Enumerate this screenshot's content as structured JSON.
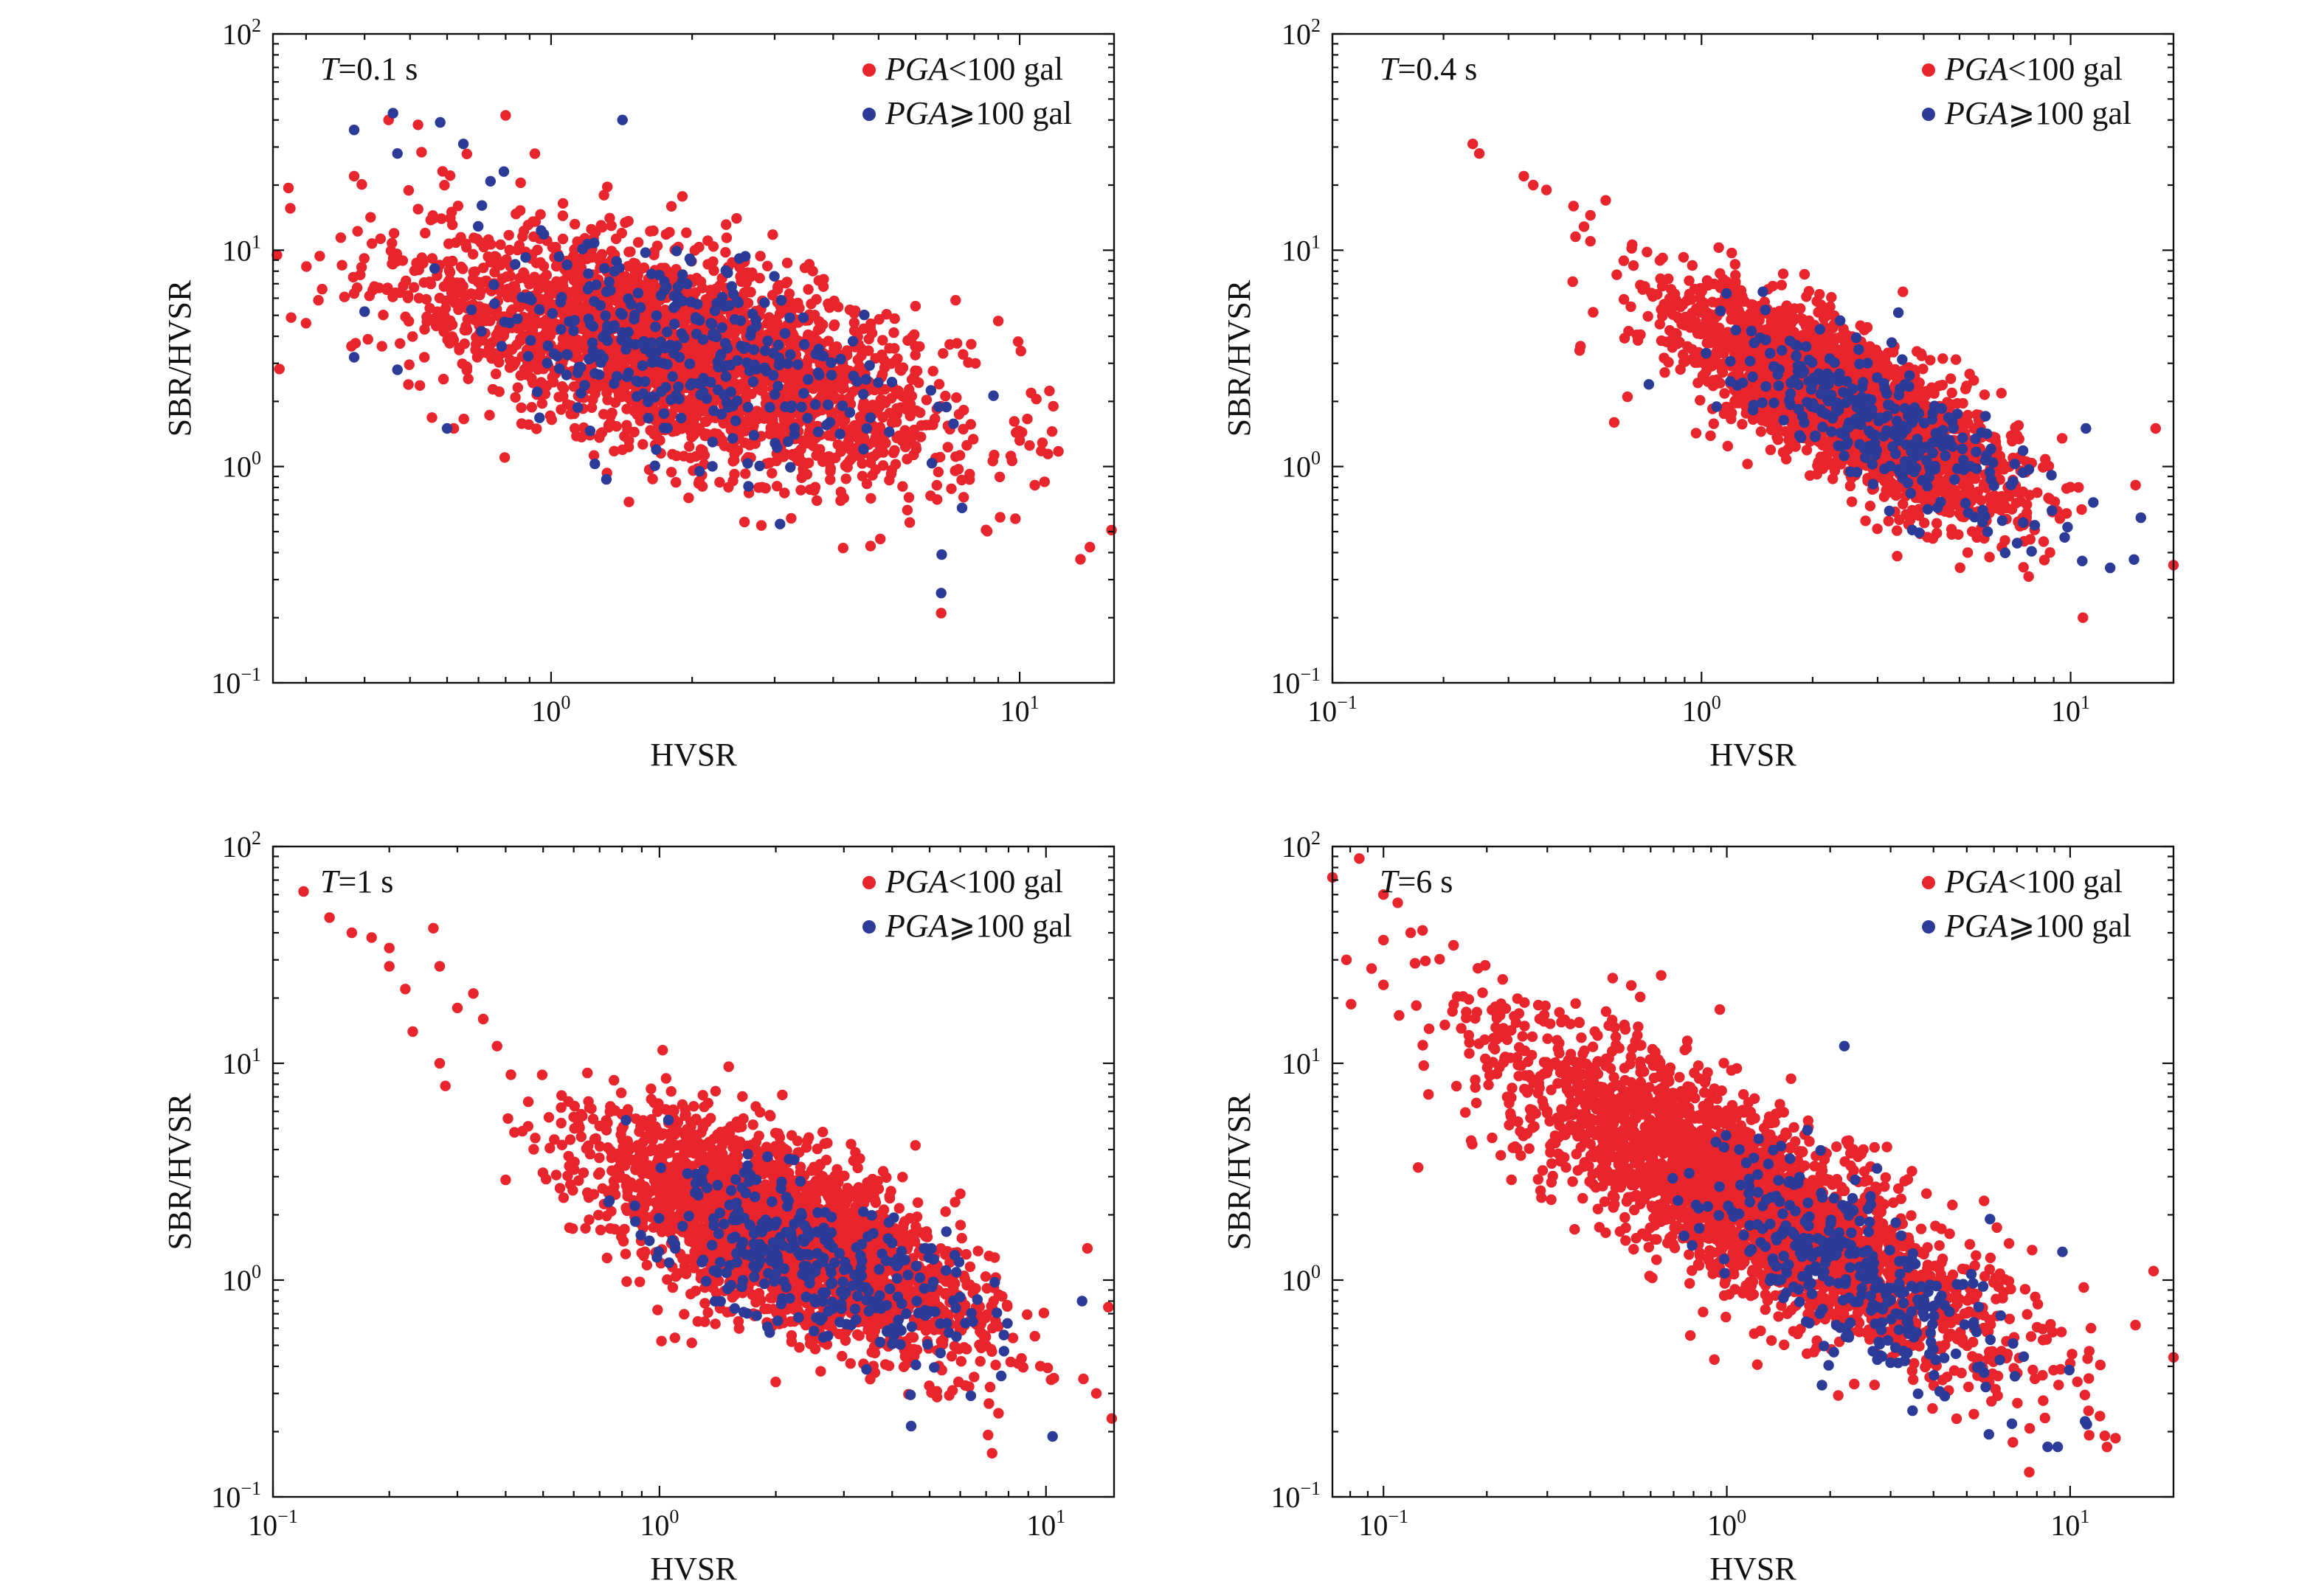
{
  "colors": {
    "low_pga": "#e8242c",
    "high_pga": "#2c3a98",
    "axis": "#111111"
  },
  "chart_data": [
    {
      "id": "p1",
      "type": "scatter",
      "annotation_italic": "T",
      "annotation_rest": "=0.1 s",
      "xlabel": "HVSR",
      "ylabel": "SBR/HVSR",
      "xscale": "log",
      "yscale": "log",
      "xlim": [
        0.255,
        15.9
      ],
      "ylim": [
        0.1,
        100
      ],
      "xticks": [
        {
          "base": "10",
          "exp": "0",
          "value": 1
        },
        {
          "base": "10",
          "exp": "1",
          "value": 10
        }
      ],
      "yticks": [
        {
          "base": "10",
          "exp": "−1",
          "value": 0.1
        },
        {
          "base": "10",
          "exp": "0",
          "value": 1
        },
        {
          "base": "10",
          "exp": "1",
          "value": 10
        },
        {
          "base": "10",
          "exp": "2",
          "value": 100
        }
      ],
      "legend_position": "top-right",
      "legend": [
        {
          "italic": "PGA",
          "rest": "<100 gal",
          "color": "#e8242c"
        },
        {
          "italic": "PGA",
          "rest": "⩾100 gal",
          "color": "#2c3a98"
        }
      ],
      "series": [
        {
          "name": "PGA<100 gal",
          "color": "#e8242c",
          "cloud": {
            "count": 2600,
            "x_log_center": 0.28,
            "x_log_sd": 0.29,
            "y_log_center": 0.52,
            "y_log_sd": 0.23,
            "slope": -0.55
          }
        },
        {
          "name": "PGA⩾100 gal",
          "color": "#2c3a98",
          "cloud": {
            "count": 330,
            "x_log_center": 0.28,
            "x_log_sd": 0.23,
            "y_log_center": 0.55,
            "y_log_sd": 0.2,
            "slope": -0.6
          }
        }
      ],
      "points": [
        {
          "s": 0,
          "x": 0.26,
          "y": 9.5
        },
        {
          "s": 0,
          "x": 0.3,
          "y": 4.6
        },
        {
          "s": 0,
          "x": 0.38,
          "y": 22
        },
        {
          "s": 0,
          "x": 0.45,
          "y": 40
        },
        {
          "s": 0,
          "x": 0.52,
          "y": 38
        },
        {
          "s": 0,
          "x": 0.8,
          "y": 42
        },
        {
          "s": 0,
          "x": 0.62,
          "y": 1.5
        },
        {
          "s": 0,
          "x": 6.8,
          "y": 0.21
        },
        {
          "s": 0,
          "x": 11.8,
          "y": 1.9
        },
        {
          "s": 0,
          "x": 11.3,
          "y": 0.85
        },
        {
          "s": 0,
          "x": 10.5,
          "y": 1.25
        },
        {
          "s": 0,
          "x": 4.2,
          "y": 0.42
        },
        {
          "s": 1,
          "x": 0.38,
          "y": 36
        },
        {
          "s": 1,
          "x": 0.46,
          "y": 43
        },
        {
          "s": 1,
          "x": 0.47,
          "y": 28
        },
        {
          "s": 1,
          "x": 0.58,
          "y": 39
        },
        {
          "s": 1,
          "x": 0.65,
          "y": 31
        },
        {
          "s": 1,
          "x": 1.42,
          "y": 40
        },
        {
          "s": 1,
          "x": 0.38,
          "y": 3.2
        },
        {
          "s": 1,
          "x": 0.47,
          "y": 2.8
        },
        {
          "s": 1,
          "x": 0.6,
          "y": 1.5
        },
        {
          "s": 1,
          "x": 6.8,
          "y": 0.26
        },
        {
          "s": 1,
          "x": 0.4,
          "y": 5.2
        }
      ]
    },
    {
      "id": "p2",
      "type": "scatter",
      "annotation_italic": "T",
      "annotation_rest": "=0.4 s",
      "xlabel": "HVSR",
      "ylabel": "SBR/HVSR",
      "xscale": "log",
      "yscale": "log",
      "xlim": [
        0.1,
        19
      ],
      "ylim": [
        0.1,
        100
      ],
      "xticks": [
        {
          "base": "10",
          "exp": "−1",
          "value": 0.1
        },
        {
          "base": "10",
          "exp": "0",
          "value": 1
        },
        {
          "base": "10",
          "exp": "1",
          "value": 10
        }
      ],
      "yticks": [
        {
          "base": "10",
          "exp": "−1",
          "value": 0.1
        },
        {
          "base": "10",
          "exp": "0",
          "value": 1
        },
        {
          "base": "10",
          "exp": "1",
          "value": 10
        },
        {
          "base": "10",
          "exp": "2",
          "value": 100
        }
      ],
      "legend_position": "top-right",
      "legend": [
        {
          "italic": "PGA",
          "rest": "<100 gal",
          "color": "#e8242c"
        },
        {
          "italic": "PGA",
          "rest": "⩾100 gal",
          "color": "#2c3a98"
        }
      ],
      "series": [
        {
          "name": "PGA<100 gal",
          "color": "#e8242c",
          "cloud": {
            "count": 2600,
            "x_log_center": 0.38,
            "x_log_sd": 0.22,
            "y_log_center": 0.3,
            "y_log_sd": 0.16,
            "slope": -0.85
          }
        },
        {
          "name": "PGA⩾100 gal",
          "color": "#2c3a98",
          "cloud": {
            "count": 300,
            "x_log_center": 0.5,
            "x_log_sd": 0.2,
            "y_log_center": 0.18,
            "y_log_sd": 0.14,
            "slope": -0.85
          }
        }
      ],
      "points": [
        {
          "s": 0,
          "x": 0.24,
          "y": 31
        },
        {
          "s": 0,
          "x": 0.25,
          "y": 28
        },
        {
          "s": 0,
          "x": 0.33,
          "y": 22
        },
        {
          "s": 0,
          "x": 0.35,
          "y": 20
        },
        {
          "s": 0,
          "x": 0.38,
          "y": 19
        },
        {
          "s": 0,
          "x": 0.45,
          "y": 16
        },
        {
          "s": 0,
          "x": 0.5,
          "y": 14.5
        },
        {
          "s": 0,
          "x": 0.55,
          "y": 17
        },
        {
          "s": 0,
          "x": 0.5,
          "y": 11
        },
        {
          "s": 0,
          "x": 0.47,
          "y": 3.6
        },
        {
          "s": 0,
          "x": 0.63,
          "y": 2.1
        },
        {
          "s": 0,
          "x": 0.58,
          "y": 1.6
        },
        {
          "s": 0,
          "x": 19,
          "y": 0.35
        },
        {
          "s": 0,
          "x": 15,
          "y": 0.82
        },
        {
          "s": 0,
          "x": 17,
          "y": 1.5
        },
        {
          "s": 0,
          "x": 10.8,
          "y": 0.2
        },
        {
          "s": 1,
          "x": 15.5,
          "y": 0.58
        },
        {
          "s": 1,
          "x": 12.8,
          "y": 0.34
        },
        {
          "s": 1,
          "x": 11,
          "y": 1.5
        }
      ]
    },
    {
      "id": "p3",
      "type": "scatter",
      "annotation_italic": "T",
      "annotation_rest": "=1 s",
      "xlabel": "HVSR",
      "ylabel": "SBR/HVSR",
      "xscale": "log",
      "yscale": "log",
      "xlim": [
        0.1,
        15
      ],
      "ylim": [
        0.1,
        100
      ],
      "xticks": [
        {
          "base": "10",
          "exp": "−1",
          "value": 0.1
        },
        {
          "base": "10",
          "exp": "0",
          "value": 1
        },
        {
          "base": "10",
          "exp": "1",
          "value": 10
        }
      ],
      "yticks": [
        {
          "base": "10",
          "exp": "−1",
          "value": 0.1
        },
        {
          "base": "10",
          "exp": "0",
          "value": 1
        },
        {
          "base": "10",
          "exp": "1",
          "value": 10
        },
        {
          "base": "10",
          "exp": "2",
          "value": 100
        }
      ],
      "legend_position": "top-right",
      "legend": [
        {
          "italic": "PGA",
          "rest": "<100 gal",
          "color": "#e8242c"
        },
        {
          "italic": "PGA",
          "rest": "⩾100 gal",
          "color": "#2c3a98"
        }
      ],
      "series": [
        {
          "name": "PGA<100 gal",
          "color": "#e8242c",
          "cloud": {
            "count": 2700,
            "x_log_center": 0.33,
            "x_log_sd": 0.24,
            "y_log_center": 0.2,
            "y_log_sd": 0.2,
            "slope": -0.7
          }
        },
        {
          "name": "PGA⩾100 gal",
          "color": "#2c3a98",
          "cloud": {
            "count": 330,
            "x_log_center": 0.4,
            "x_log_sd": 0.22,
            "y_log_center": 0.1,
            "y_log_sd": 0.18,
            "slope": -0.7
          }
        }
      ],
      "points": [
        {
          "s": 0,
          "x": 0.12,
          "y": 62
        },
        {
          "s": 0,
          "x": 0.14,
          "y": 47
        },
        {
          "s": 0,
          "x": 0.16,
          "y": 40
        },
        {
          "s": 0,
          "x": 0.18,
          "y": 38
        },
        {
          "s": 0,
          "x": 0.2,
          "y": 34
        },
        {
          "s": 0,
          "x": 0.2,
          "y": 28
        },
        {
          "s": 0,
          "x": 0.22,
          "y": 22
        },
        {
          "s": 0,
          "x": 0.26,
          "y": 42
        },
        {
          "s": 0,
          "x": 0.27,
          "y": 28
        },
        {
          "s": 0,
          "x": 0.23,
          "y": 14
        },
        {
          "s": 0,
          "x": 0.27,
          "y": 10
        },
        {
          "s": 0,
          "x": 0.3,
          "y": 18
        },
        {
          "s": 0,
          "x": 0.33,
          "y": 21
        },
        {
          "s": 0,
          "x": 0.35,
          "y": 16
        },
        {
          "s": 0,
          "x": 0.38,
          "y": 12
        },
        {
          "s": 0,
          "x": 0.4,
          "y": 2.9
        },
        {
          "s": 0,
          "x": 14.8,
          "y": 0.23
        },
        {
          "s": 0,
          "x": 14.5,
          "y": 0.75
        },
        {
          "s": 0,
          "x": 13.5,
          "y": 0.3
        },
        {
          "s": 0,
          "x": 12.5,
          "y": 0.35
        },
        {
          "s": 0,
          "x": 12.8,
          "y": 1.4
        },
        {
          "s": 1,
          "x": 10.4,
          "y": 0.19
        },
        {
          "s": 1,
          "x": 12.4,
          "y": 0.8
        }
      ]
    },
    {
      "id": "p4",
      "type": "scatter",
      "annotation_italic": "T",
      "annotation_rest": "=6 s",
      "xlabel": "HVSR",
      "ylabel": "SBR/HVSR",
      "xscale": "log",
      "yscale": "log",
      "xlim": [
        0.071,
        20
      ],
      "ylim": [
        0.1,
        100
      ],
      "xticks": [
        {
          "base": "10",
          "exp": "−1",
          "value": 0.1
        },
        {
          "base": "10",
          "exp": "0",
          "value": 1
        },
        {
          "base": "10",
          "exp": "1",
          "value": 10
        }
      ],
      "yticks": [
        {
          "base": "10",
          "exp": "−1",
          "value": 0.1
        },
        {
          "base": "10",
          "exp": "0",
          "value": 1
        },
        {
          "base": "10",
          "exp": "1",
          "value": 10
        },
        {
          "base": "10",
          "exp": "2",
          "value": 100
        }
      ],
      "legend_position": "top-right",
      "legend": [
        {
          "italic": "PGA",
          "rest": "<100 gal",
          "color": "#e8242c"
        },
        {
          "italic": "PGA",
          "rest": "⩾100 gal",
          "color": "#2c3a98"
        }
      ],
      "series": [
        {
          "name": "PGA<100 gal",
          "color": "#e8242c",
          "cloud": {
            "count": 2700,
            "x_log_center": 0.05,
            "x_log_sd": 0.36,
            "y_log_center": 0.38,
            "y_log_sd": 0.22,
            "slope": -0.85
          }
        },
        {
          "name": "PGA⩾100 gal",
          "color": "#2c3a98",
          "cloud": {
            "count": 330,
            "x_log_center": 0.35,
            "x_log_sd": 0.22,
            "y_log_center": 0.05,
            "y_log_sd": 0.18,
            "slope": -0.9
          }
        }
      ],
      "points": [
        {
          "s": 0,
          "x": 0.071,
          "y": 72
        },
        {
          "s": 0,
          "x": 0.085,
          "y": 88
        },
        {
          "s": 0,
          "x": 0.078,
          "y": 30
        },
        {
          "s": 0,
          "x": 0.1,
          "y": 60
        },
        {
          "s": 0,
          "x": 0.11,
          "y": 55
        },
        {
          "s": 0,
          "x": 0.1,
          "y": 37
        },
        {
          "s": 0,
          "x": 0.1,
          "y": 23
        },
        {
          "s": 0,
          "x": 0.13,
          "y": 41
        },
        {
          "s": 0,
          "x": 0.12,
          "y": 40
        },
        {
          "s": 0,
          "x": 0.16,
          "y": 35
        },
        {
          "s": 0,
          "x": 0.18,
          "y": 4.4
        },
        {
          "s": 0,
          "x": 20,
          "y": 0.44
        },
        {
          "s": 0,
          "x": 17.5,
          "y": 1.1
        },
        {
          "s": 0,
          "x": 15.5,
          "y": 0.62
        },
        {
          "s": 0,
          "x": 11.5,
          "y": 0.6
        },
        {
          "s": 0,
          "x": 7.6,
          "y": 0.13
        },
        {
          "s": 1,
          "x": 2.2,
          "y": 12
        },
        {
          "s": 1,
          "x": 8.6,
          "y": 0.17
        },
        {
          "s": 1,
          "x": 9.2,
          "y": 0.17
        },
        {
          "s": 1,
          "x": 9.5,
          "y": 1.35
        }
      ]
    }
  ]
}
